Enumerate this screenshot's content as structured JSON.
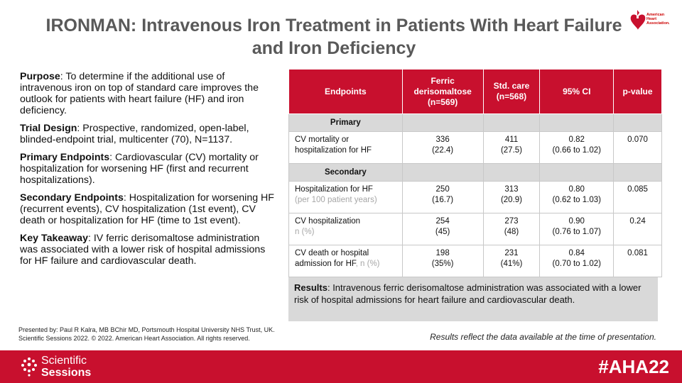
{
  "title": "IRONMAN:  Intravenous Iron Treatment in Patients With Heart Failure and Iron Deficiency",
  "logo": {
    "text": "American Heart Association.",
    "color": "#c8102e"
  },
  "left": {
    "purpose_label": "Purpose",
    "purpose_text": ":  To determine if the additional use of intravenous  iron on top of standard care improves the outlook for patients with heart failure (HF) and iron deficiency.",
    "design_label": "Trial Design",
    "design_text": ":  Prospective, randomized, open-label, blinded-endpoint trial, multicenter (70), N=1137.",
    "primary_label": "Primary Endpoints",
    "primary_text": ":  Cardiovascular (CV) mortality or hospitalization for worsening HF (first and recurrent hospitalizations).",
    "secondary_label": "Secondary Endpoints",
    "secondary_text": ":  Hospitalization for worsening HF (recurrent events),  CV hospitalization (1st event), CV death or hospitalization for HF (time to 1st event).",
    "takeaway_label": "Key Takeaway",
    "takeaway_text": ": IV ferric derisomaltose administration was associated with a lower risk of hospital admissions for HF failure and cardiovascular death."
  },
  "table": {
    "headers": [
      "Endpoints",
      "Ferric derisomaltose (n=569)",
      "Std. care (n=568)",
      "95% CI",
      "p-value"
    ],
    "primary_label": "Primary",
    "secondary_label": "Secondary",
    "rows": [
      {
        "ep": "CV mortality or hospitalization for HF",
        "ep_sub": "",
        "a1": "336",
        "a2": "(22.4)",
        "b1": "411",
        "b2": "(27.5)",
        "c1": "0.82",
        "c2": "(0.66 to 1.02)",
        "p": "0.070"
      },
      {
        "ep": "Hospitalization for HF",
        "ep_sub": "(per 100 patient years)",
        "a1": "250",
        "a2": "(16.7)",
        "b1": "313",
        "b2": "(20.9)",
        "c1": "0.80",
        "c2": "(0.62 to 1.03)",
        "p": "0.085"
      },
      {
        "ep": "CV hospitalization",
        "ep_sub": "n (%)",
        "a1": "254",
        "a2": "(45)",
        "b1": "273",
        "b2": "(48)",
        "c1": "0.90",
        "c2": "(0.76 to 1.07)",
        "p": "0.24"
      },
      {
        "ep": "CV death or hospital admission for HF",
        "ep_sub": ", n (%)",
        "a1": "198",
        "a2": "(35%)",
        "b1": "231",
        "b2": "(41%)",
        "c1": "0.84",
        "c2": "(0.70 to 1.02)",
        "p": "0.081"
      }
    ]
  },
  "results": {
    "label": "Results",
    "text": ":  Intravenous ferric derisomaltose administration was associated with a lower risk of hospital admissions for heart failure and cardiovascular death."
  },
  "presented_line1": "Presented by: Paul R Kalra, MB BChir MD, Portsmouth Hospital University NHS Trust, UK.",
  "presented_line2": "Scientific Sessions 2022. © 2022. American Heart Association. All rights reserved.",
  "note": "Results reflect the data available at the time of presentation.",
  "footer": {
    "brand_line1": "Scientific",
    "brand_line2": "Sessions",
    "hashtag": "#AHA22",
    "color": "#c8102e"
  }
}
